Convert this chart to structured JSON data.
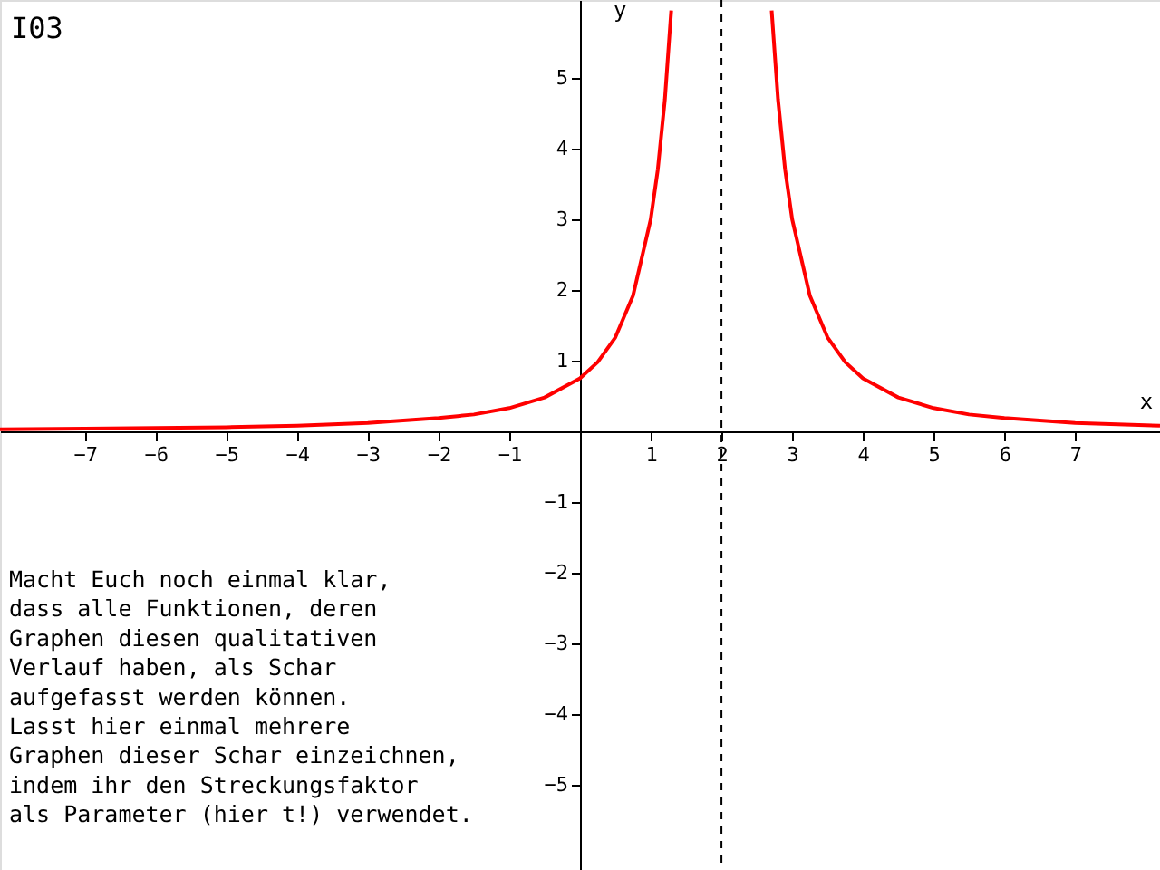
{
  "chart_data": {
    "type": "line",
    "title": "I03",
    "xlabel": "x",
    "ylabel": "y",
    "xlim": [
      -8.2,
      8.2
    ],
    "ylim": [
      -6.2,
      6.1
    ],
    "xticks": [
      -7,
      -6,
      -5,
      -4,
      -3,
      -2,
      -1,
      1,
      2,
      3,
      4,
      5,
      6,
      7
    ],
    "yticks": [
      -5,
      -4,
      -3,
      -2,
      -1,
      1,
      2,
      3,
      4,
      5
    ],
    "grid": false,
    "marker": "none",
    "line_style": "solid",
    "series": [
      {
        "color": "#ff0000",
        "x": [
          -8.2,
          -7,
          -6,
          -5,
          -4,
          -3,
          -2,
          -1.5,
          -1,
          -0.5,
          0,
          0.25,
          0.5,
          0.75,
          1,
          1.1,
          1.2,
          1.29
        ],
        "values": [
          0.03,
          0.04,
          0.05,
          0.06,
          0.08,
          0.12,
          0.19,
          0.24,
          0.33,
          0.48,
          0.75,
          0.98,
          1.33,
          1.92,
          3,
          3.7,
          4.69,
          5.95
        ]
      },
      {
        "color": "#ff0000",
        "x": [
          2.71,
          2.8,
          2.9,
          3,
          3.25,
          3.5,
          3.75,
          4,
          4.5,
          5,
          5.5,
          6,
          7,
          8.2
        ],
        "values": [
          5.95,
          4.69,
          3.7,
          3,
          1.92,
          1.33,
          0.98,
          0.75,
          0.48,
          0.33,
          0.24,
          0.19,
          0.12,
          0.08
        ]
      }
    ],
    "ref_lines": [
      {
        "axis": "x",
        "value": 2,
        "color": "#000000",
        "line_style": "dashed"
      }
    ],
    "annotations": [
      "Macht Euch noch einmal klar,\ndass alle Funktionen, deren\nGraphen diesen qualitativen\nVerlauf haben, als Schar\naufgefasst werden können.\nLasst hier einmal mehrere\nGraphen dieser Schar einzeichnen,\nindem ihr den Streckungsfaktor\nals Parameter (hier t!) verwendet."
    ]
  }
}
